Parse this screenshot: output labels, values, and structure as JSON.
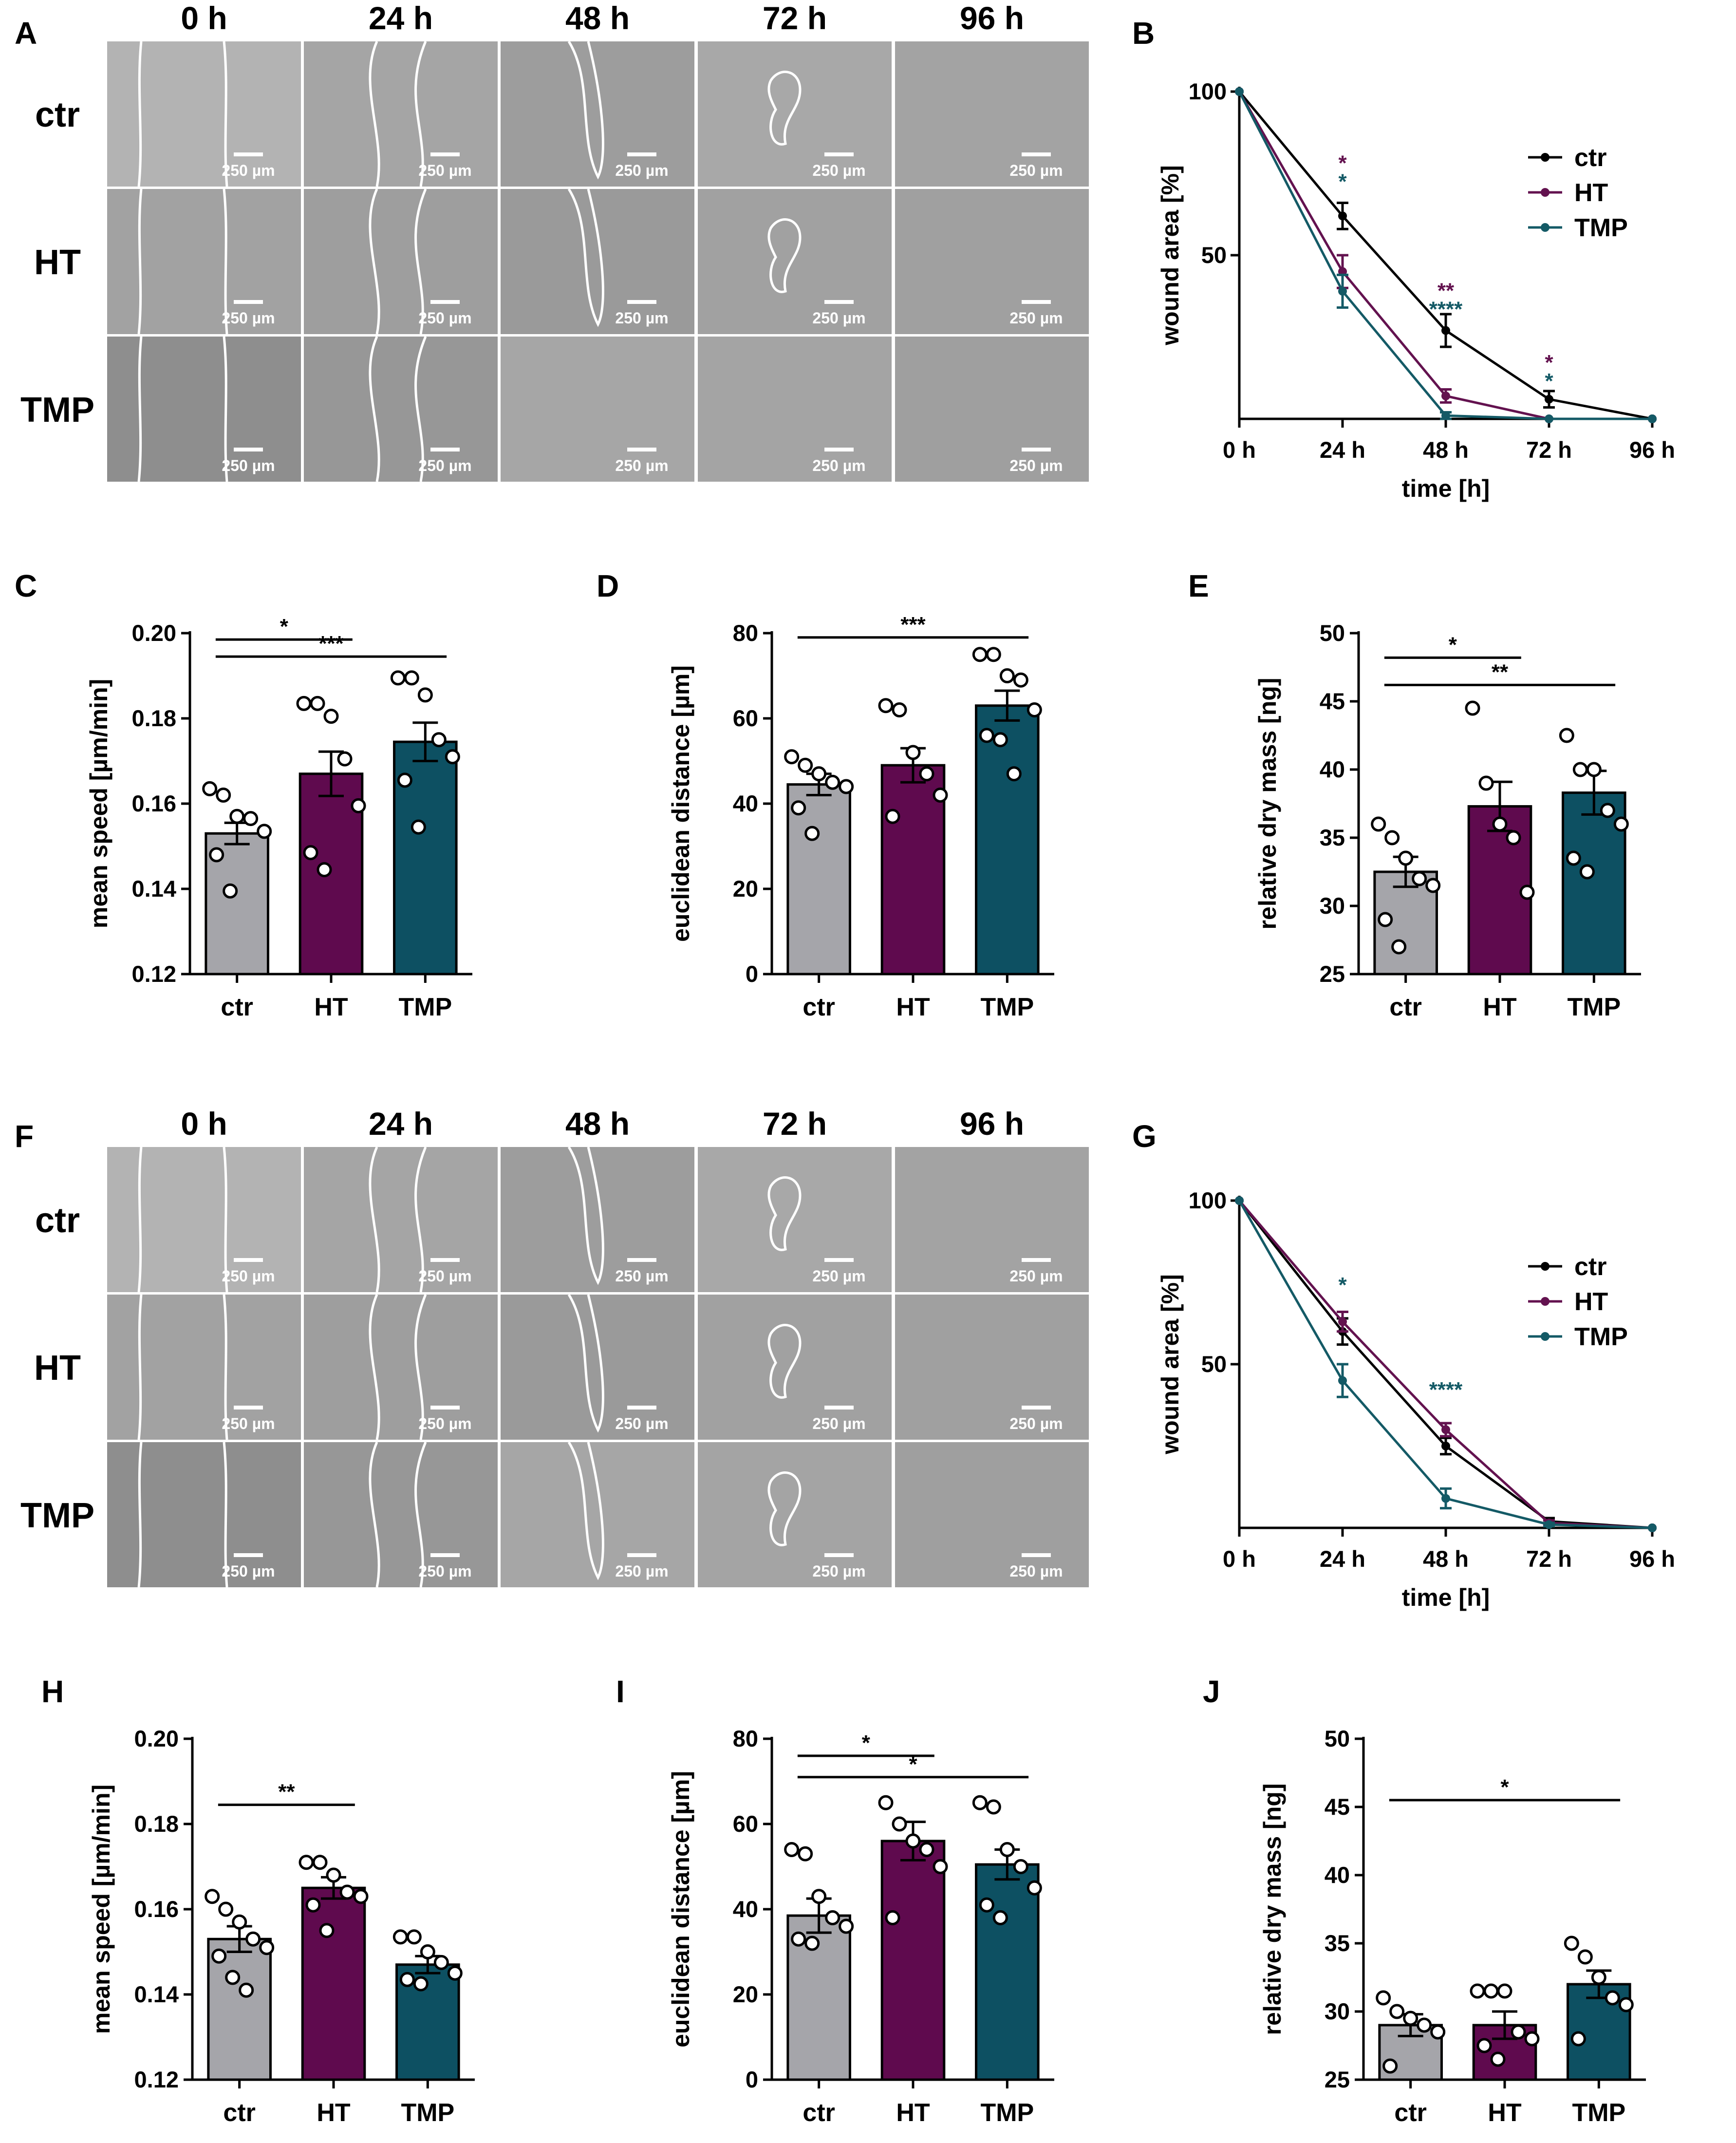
{
  "colors": {
    "ctr": "#a5a5aa",
    "HT": "#5f0a4e",
    "TMP": "#0d5062",
    "ctr_line": "#000000",
    "HT_line": "#63124f",
    "TMP_line": "#145a66"
  },
  "panel_labels": {
    "A": "A",
    "B": "B",
    "C": "C",
    "D": "D",
    "E": "E",
    "F": "F",
    "G": "G",
    "H": "H",
    "I": "I",
    "J": "J"
  },
  "microscopy": [
    {
      "panel": "A",
      "timepoints": [
        "0 h",
        "24 h",
        "48 h",
        "72 h",
        "96 h"
      ],
      "rows": [
        "ctr",
        "HT",
        "TMP"
      ],
      "scale_bar": "250 µm"
    },
    {
      "panel": "F",
      "timepoints": [
        "0 h",
        "24 h",
        "48 h",
        "72 h",
        "96 h"
      ],
      "rows": [
        "ctr",
        "HT",
        "TMP"
      ],
      "scale_bar": "250 µm"
    }
  ],
  "chart_data": [
    {
      "panel": "B",
      "type": "line",
      "xlabel": "time [h]",
      "ylabel": "wound area [%]",
      "categories": [
        "0 h",
        "24 h",
        "48 h",
        "72 h",
        "96 h"
      ],
      "x": [
        0,
        24,
        48,
        72,
        96
      ],
      "ylim": [
        0,
        100
      ],
      "yticks": [
        50,
        100
      ],
      "series": [
        {
          "name": "ctr",
          "values": [
            100,
            62,
            27,
            6,
            0
          ],
          "errors": [
            0,
            4,
            5,
            2.5,
            0
          ]
        },
        {
          "name": "HT",
          "values": [
            100,
            45,
            7,
            0,
            0
          ],
          "errors": [
            0,
            5,
            2,
            0,
            0
          ]
        },
        {
          "name": "TMP",
          "values": [
            100,
            39,
            1,
            0,
            0
          ],
          "errors": [
            0,
            5,
            1,
            0,
            0
          ]
        }
      ],
      "legend": [
        "ctr",
        "HT",
        "TMP"
      ],
      "annotations": [
        {
          "x": 24,
          "labels": [
            {
              "text": "*",
              "series": "HT"
            },
            {
              "text": "*",
              "series": "TMP"
            }
          ],
          "y": 76
        },
        {
          "x": 48,
          "labels": [
            {
              "text": "**",
              "series": "HT"
            },
            {
              "text": "****",
              "series": "TMP"
            }
          ],
          "y": 37
        },
        {
          "x": 72,
          "labels": [
            {
              "text": "*",
              "series": "HT"
            },
            {
              "text": "*",
              "series": "TMP"
            }
          ],
          "y": 15
        }
      ]
    },
    {
      "panel": "C",
      "type": "bar",
      "ylabel": "mean speed [µm/min]",
      "categories": [
        "ctr",
        "HT",
        "TMP"
      ],
      "values": [
        0.153,
        0.167,
        0.1745
      ],
      "errors": [
        0.0025,
        0.0052,
        0.0045
      ],
      "ylim": [
        0.12,
        0.2
      ],
      "yticks": [
        0.12,
        0.14,
        0.16,
        0.18,
        0.2
      ],
      "ytick_labels": [
        "0.12",
        "0.14",
        "0.16",
        "0.18",
        "0.20"
      ],
      "points": [
        [
          0.1635,
          0.162,
          0.157,
          0.1565,
          0.1535,
          0.148,
          0.1395
        ],
        [
          0.1835,
          0.1835,
          0.1805,
          0.1705,
          0.1595,
          0.1485,
          0.1445
        ],
        [
          0.1895,
          0.1895,
          0.1855,
          0.175,
          0.171,
          0.1655,
          0.1545
        ]
      ],
      "sig": [
        {
          "from": 0,
          "to": 1,
          "text": "*",
          "y": 0.1985
        },
        {
          "from": 0,
          "to": 2,
          "text": "***",
          "y": 0.1945
        }
      ]
    },
    {
      "panel": "D",
      "type": "bar",
      "ylabel": "euclidean distance [µm]",
      "categories": [
        "ctr",
        "HT",
        "TMP"
      ],
      "values": [
        44.5,
        49,
        63
      ],
      "errors": [
        2.5,
        4,
        3.5
      ],
      "ylim": [
        0,
        80
      ],
      "yticks": [
        0,
        20,
        40,
        60,
        80
      ],
      "ytick_labels": [
        "0",
        "20",
        "40",
        "60",
        "80"
      ],
      "points": [
        [
          51,
          49,
          47,
          45,
          44,
          39,
          33
        ],
        [
          63,
          62,
          52,
          47,
          42,
          37
        ],
        [
          75,
          75,
          70,
          69,
          62,
          56,
          55,
          47
        ]
      ],
      "sig": [
        {
          "from": 0,
          "to": 2,
          "text": "***",
          "y": 79
        }
      ]
    },
    {
      "panel": "E",
      "type": "bar",
      "ylabel": "relative dry mass [ng]",
      "categories": [
        "ctr",
        "HT",
        "TMP"
      ],
      "values": [
        32.5,
        37.3,
        38.3
      ],
      "errors": [
        1.1,
        1.8,
        1.6
      ],
      "ylim": [
        25,
        50
      ],
      "yticks": [
        25,
        30,
        35,
        40,
        45,
        50
      ],
      "ytick_labels": [
        "25",
        "30",
        "35",
        "40",
        "45",
        "50"
      ],
      "points": [
        [
          36,
          35,
          33.5,
          32,
          31.5,
          29,
          27
        ],
        [
          44.5,
          39,
          36,
          35,
          31
        ],
        [
          42.5,
          40,
          40,
          37,
          36,
          33.5,
          32.5
        ]
      ],
      "sig": [
        {
          "from": 0,
          "to": 1,
          "text": "*",
          "y": 48.2
        },
        {
          "from": 0,
          "to": 2,
          "text": "**",
          "y": 46.2
        }
      ]
    },
    {
      "panel": "G",
      "type": "line",
      "xlabel": "time [h]",
      "ylabel": "wound area [%]",
      "categories": [
        "0 h",
        "24 h",
        "48 h",
        "72 h",
        "96 h"
      ],
      "x": [
        0,
        24,
        48,
        72,
        96
      ],
      "ylim": [
        0,
        100
      ],
      "yticks": [
        50,
        100
      ],
      "series": [
        {
          "name": "ctr",
          "values": [
            100,
            60,
            25,
            2,
            0
          ],
          "errors": [
            0,
            4,
            2.5,
            1,
            0
          ]
        },
        {
          "name": "HT",
          "values": [
            100,
            63,
            30,
            1.5,
            0
          ],
          "errors": [
            0,
            3,
            2,
            0.8,
            0
          ]
        },
        {
          "name": "TMP",
          "values": [
            100,
            45,
            9,
            1,
            0
          ],
          "errors": [
            0,
            5,
            3,
            0.5,
            0
          ]
        }
      ],
      "legend": [
        "ctr",
        "HT",
        "TMP"
      ],
      "annotations": [
        {
          "x": 24,
          "labels": [
            {
              "text": "*",
              "series": "TMP"
            }
          ],
          "y": 72
        },
        {
          "x": 48,
          "labels": [
            {
              "text": "****",
              "series": "TMP"
            }
          ],
          "y": 40
        }
      ]
    },
    {
      "panel": "H",
      "type": "bar",
      "ylabel": "mean speed [µm/min]",
      "categories": [
        "ctr",
        "HT",
        "TMP"
      ],
      "values": [
        0.153,
        0.165,
        0.147
      ],
      "errors": [
        0.003,
        0.0025,
        0.002
      ],
      "ylim": [
        0.12,
        0.2
      ],
      "yticks": [
        0.12,
        0.14,
        0.16,
        0.18,
        0.2
      ],
      "ytick_labels": [
        "0.12",
        "0.14",
        "0.16",
        "0.18",
        "0.20"
      ],
      "points": [
        [
          0.163,
          0.16,
          0.157,
          0.153,
          0.151,
          0.149,
          0.144,
          0.141
        ],
        [
          0.171,
          0.171,
          0.168,
          0.164,
          0.163,
          0.161,
          0.155
        ],
        [
          0.1535,
          0.1535,
          0.15,
          0.1475,
          0.145,
          0.1435,
          0.1425
        ]
      ],
      "sig": [
        {
          "from": 0,
          "to": 1,
          "text": "**",
          "y": 0.1845
        }
      ]
    },
    {
      "panel": "I",
      "type": "bar",
      "ylabel": "euclidean distance [µm]",
      "categories": [
        "ctr",
        "HT",
        "TMP"
      ],
      "values": [
        38.5,
        56,
        50.5
      ],
      "errors": [
        4,
        4.5,
        3.5
      ],
      "ylim": [
        0,
        80
      ],
      "yticks": [
        0,
        20,
        40,
        60,
        80
      ],
      "ytick_labels": [
        "0",
        "20",
        "40",
        "60",
        "80"
      ],
      "points": [
        [
          54,
          53,
          43,
          38,
          36,
          33,
          32
        ],
        [
          65,
          60,
          56,
          54,
          50,
          38
        ],
        [
          65,
          64,
          54,
          50,
          45,
          41,
          38
        ]
      ],
      "sig": [
        {
          "from": 0,
          "to": 1,
          "text": "*",
          "y": 76
        },
        {
          "from": 0,
          "to": 2,
          "text": "*",
          "y": 71
        }
      ]
    },
    {
      "panel": "J",
      "type": "bar",
      "ylabel": "relative dry mass [ng]",
      "categories": [
        "ctr",
        "HT",
        "TMP"
      ],
      "values": [
        29,
        29,
        32
      ],
      "errors": [
        0.8,
        1.0,
        1.0
      ],
      "ylim": [
        25,
        50
      ],
      "yticks": [
        25,
        30,
        35,
        40,
        45,
        50
      ],
      "ytick_labels": [
        "25",
        "30",
        "35",
        "40",
        "45",
        "50"
      ],
      "points": [
        [
          31,
          30,
          29.5,
          29,
          28.5,
          26
        ],
        [
          31.5,
          31.5,
          31.5,
          28.5,
          28,
          27.5,
          26.5
        ],
        [
          35,
          34,
          32.5,
          31,
          30.5,
          28
        ]
      ],
      "sig": [
        {
          "from": 0,
          "to": 2,
          "text": "*",
          "y": 45.5
        }
      ]
    }
  ]
}
